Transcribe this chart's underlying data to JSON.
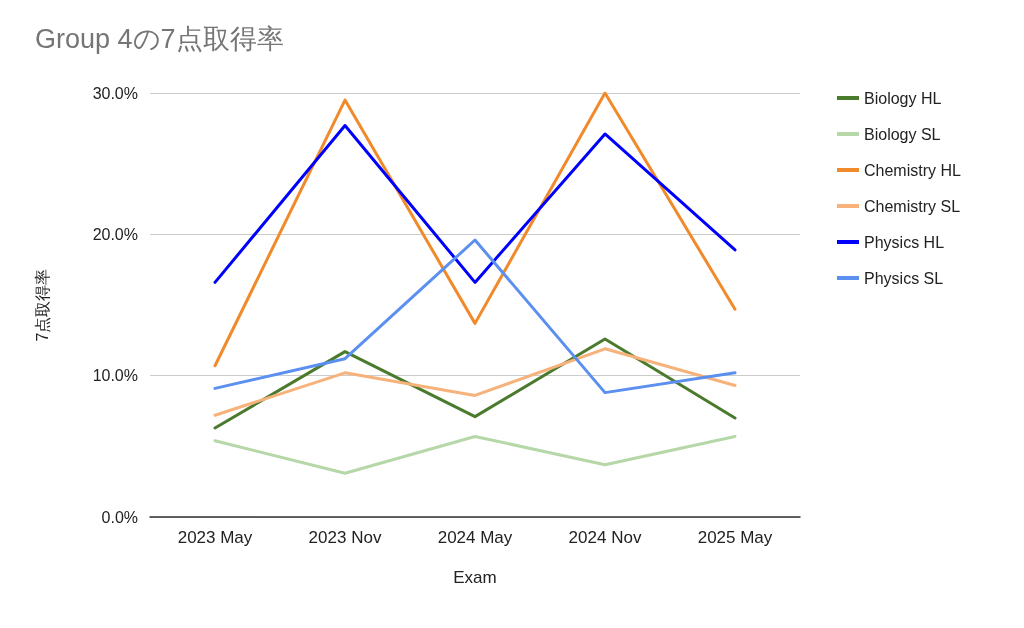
{
  "chart_data": {
    "type": "line",
    "title": "Group 4の7点取得率",
    "xlabel": "Exam",
    "ylabel": "7点取得率",
    "categories": [
      "2023 May",
      "2023 Nov",
      "2024 May",
      "2024 Nov",
      "2025 May"
    ],
    "series": [
      {
        "name": "Biology HL",
        "color": "#4a7a2c",
        "values": [
          6.3,
          11.7,
          7.1,
          12.6,
          7.0
        ]
      },
      {
        "name": "Biology SL",
        "color": "#b6d7a8",
        "values": [
          5.4,
          3.1,
          5.7,
          3.7,
          5.7
        ]
      },
      {
        "name": "Chemistry HL",
        "color": "#f08a2b",
        "values": [
          10.7,
          29.5,
          13.7,
          30.0,
          14.7
        ]
      },
      {
        "name": "Chemistry SL",
        "color": "#f6b27a",
        "values": [
          7.2,
          10.2,
          8.6,
          11.9,
          9.3
        ]
      },
      {
        "name": "Physics HL",
        "color": "#0000ff",
        "values": [
          16.6,
          27.7,
          16.6,
          27.1,
          18.9
        ]
      },
      {
        "name": "Physics SL",
        "color": "#5b8ff0",
        "values": [
          9.1,
          11.2,
          19.6,
          8.8,
          10.2
        ]
      }
    ],
    "ylim": [
      0,
      30
    ],
    "yticks": [
      {
        "value": 0,
        "label": "0.0%"
      },
      {
        "value": 10,
        "label": "10.0%"
      },
      {
        "value": 20,
        "label": "20.0%"
      },
      {
        "value": 30,
        "label": "30.0%"
      }
    ],
    "grid": "y",
    "legend": "right",
    "marker": "none",
    "line_style": "solid"
  }
}
